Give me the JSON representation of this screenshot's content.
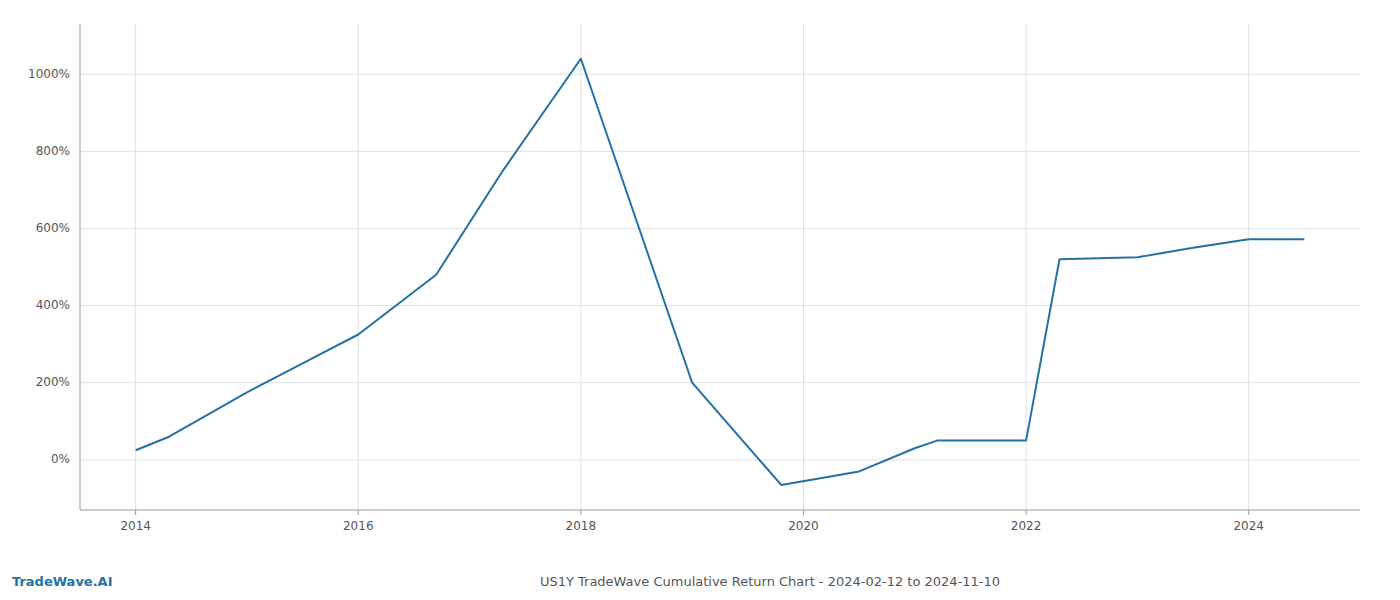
{
  "chart_data": {
    "type": "line",
    "title": "US1Y TradeWave Cumulative Return Chart - 2024-02-12 to 2024-11-10",
    "annotations": [
      "TradeWave.AI"
    ],
    "x": [
      2014.0,
      2014.3,
      2015.0,
      2015.5,
      2016.0,
      2016.7,
      2017.3,
      2018.0,
      2018.5,
      2019.0,
      2019.8,
      2020.1,
      2020.5,
      2021.0,
      2021.2,
      2022.0,
      2022.3,
      2023.0,
      2023.5,
      2024.0,
      2024.5
    ],
    "values": [
      25,
      60,
      175,
      250,
      325,
      480,
      750,
      1040,
      620,
      200,
      -65,
      -50,
      -30,
      30,
      50,
      50,
      520,
      525,
      550,
      572,
      572
    ],
    "color": "#2471a3",
    "xlim": [
      2013.5,
      2025.0
    ],
    "ylim": [
      -130,
      1130
    ],
    "xticks": [
      2014,
      2016,
      2018,
      2020,
      2022,
      2024
    ],
    "yticks": [
      {
        "value": 0,
        "label": "0%"
      },
      {
        "value": 200,
        "label": "200%"
      },
      {
        "value": 400,
        "label": "400%"
      },
      {
        "value": 600,
        "label": "600%"
      },
      {
        "value": 800,
        "label": "800%"
      },
      {
        "value": 1000,
        "label": "1000%"
      }
    ],
    "grid": true
  }
}
